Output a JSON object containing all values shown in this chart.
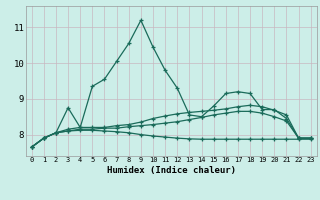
{
  "title": "",
  "xlabel": "Humidex (Indice chaleur)",
  "xlim": [
    -0.5,
    23.5
  ],
  "ylim": [
    7.4,
    11.6
  ],
  "xticks": [
    0,
    1,
    2,
    3,
    4,
    5,
    6,
    7,
    8,
    9,
    10,
    11,
    12,
    13,
    14,
    15,
    16,
    17,
    18,
    19,
    20,
    21,
    22,
    23
  ],
  "yticks": [
    8,
    9,
    10,
    11
  ],
  "bg_color": "#cceee8",
  "grid_color_v": "#c8b8c0",
  "grid_color_h": "#c8b8c0",
  "line_color": "#1a6b5a",
  "line1_x": [
    0,
    1,
    2,
    3,
    4,
    5,
    6,
    7,
    8,
    9,
    10,
    11,
    12,
    13,
    14,
    15,
    16,
    17,
    18,
    19,
    20,
    21,
    22,
    23
  ],
  "line1_y": [
    7.65,
    7.9,
    8.05,
    8.75,
    8.2,
    9.35,
    9.55,
    10.05,
    10.55,
    11.2,
    10.45,
    9.8,
    9.3,
    8.55,
    8.5,
    8.8,
    9.15,
    9.2,
    9.15,
    8.7,
    8.7,
    8.45,
    7.9,
    7.9
  ],
  "line2_x": [
    0,
    1,
    2,
    3,
    4,
    5,
    6,
    7,
    8,
    9,
    10,
    11,
    12,
    13,
    14,
    15,
    16,
    17,
    18,
    19,
    20,
    21,
    22,
    23
  ],
  "line2_y": [
    7.65,
    7.9,
    8.05,
    8.15,
    8.2,
    8.2,
    8.2,
    8.25,
    8.28,
    8.35,
    8.45,
    8.52,
    8.58,
    8.62,
    8.65,
    8.68,
    8.72,
    8.78,
    8.82,
    8.78,
    8.68,
    8.55,
    7.9,
    7.9
  ],
  "line3_x": [
    0,
    1,
    2,
    3,
    4,
    5,
    6,
    7,
    8,
    9,
    10,
    11,
    12,
    13,
    14,
    15,
    16,
    17,
    18,
    19,
    20,
    21,
    22,
    23
  ],
  "line3_y": [
    7.65,
    7.9,
    8.05,
    8.1,
    8.15,
    8.15,
    8.18,
    8.18,
    8.22,
    8.25,
    8.28,
    8.32,
    8.36,
    8.42,
    8.48,
    8.55,
    8.6,
    8.65,
    8.65,
    8.6,
    8.5,
    8.38,
    7.9,
    7.9
  ],
  "line4_x": [
    0,
    1,
    2,
    3,
    4,
    5,
    6,
    7,
    8,
    9,
    10,
    11,
    12,
    13,
    14,
    15,
    16,
    17,
    18,
    19,
    20,
    21,
    22,
    23
  ],
  "line4_y": [
    7.65,
    7.9,
    8.05,
    8.1,
    8.12,
    8.12,
    8.1,
    8.08,
    8.05,
    8.0,
    7.96,
    7.93,
    7.9,
    7.88,
    7.87,
    7.87,
    7.87,
    7.87,
    7.87,
    7.87,
    7.87,
    7.87,
    7.87,
    7.87
  ]
}
